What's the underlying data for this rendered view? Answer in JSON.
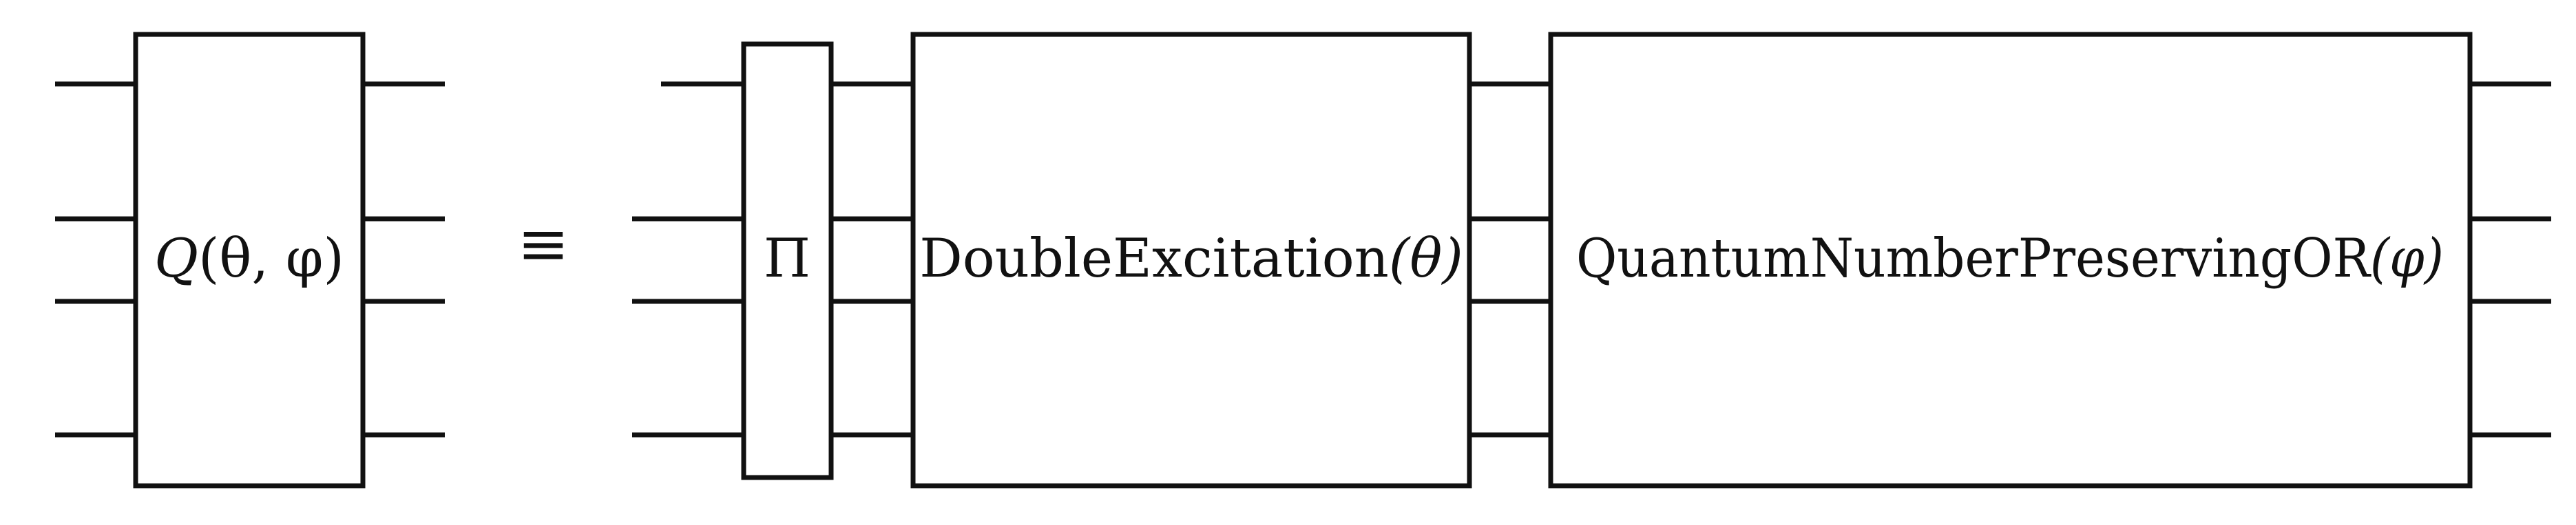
{
  "diagram": {
    "lhs": {
      "gate": {
        "name": "Q",
        "args": "(θ, φ)"
      }
    },
    "equivalence_symbol": "≡",
    "rhs": {
      "gates": [
        {
          "label": "Π"
        },
        {
          "label": "DoubleExcitation",
          "arg": "(θ)"
        },
        {
          "label": "QuantumNumberPreservingOR",
          "arg": "(φ)"
        }
      ]
    },
    "wire_count": 4
  },
  "colors": {
    "stroke": "#111111",
    "background": "#ffffff"
  }
}
